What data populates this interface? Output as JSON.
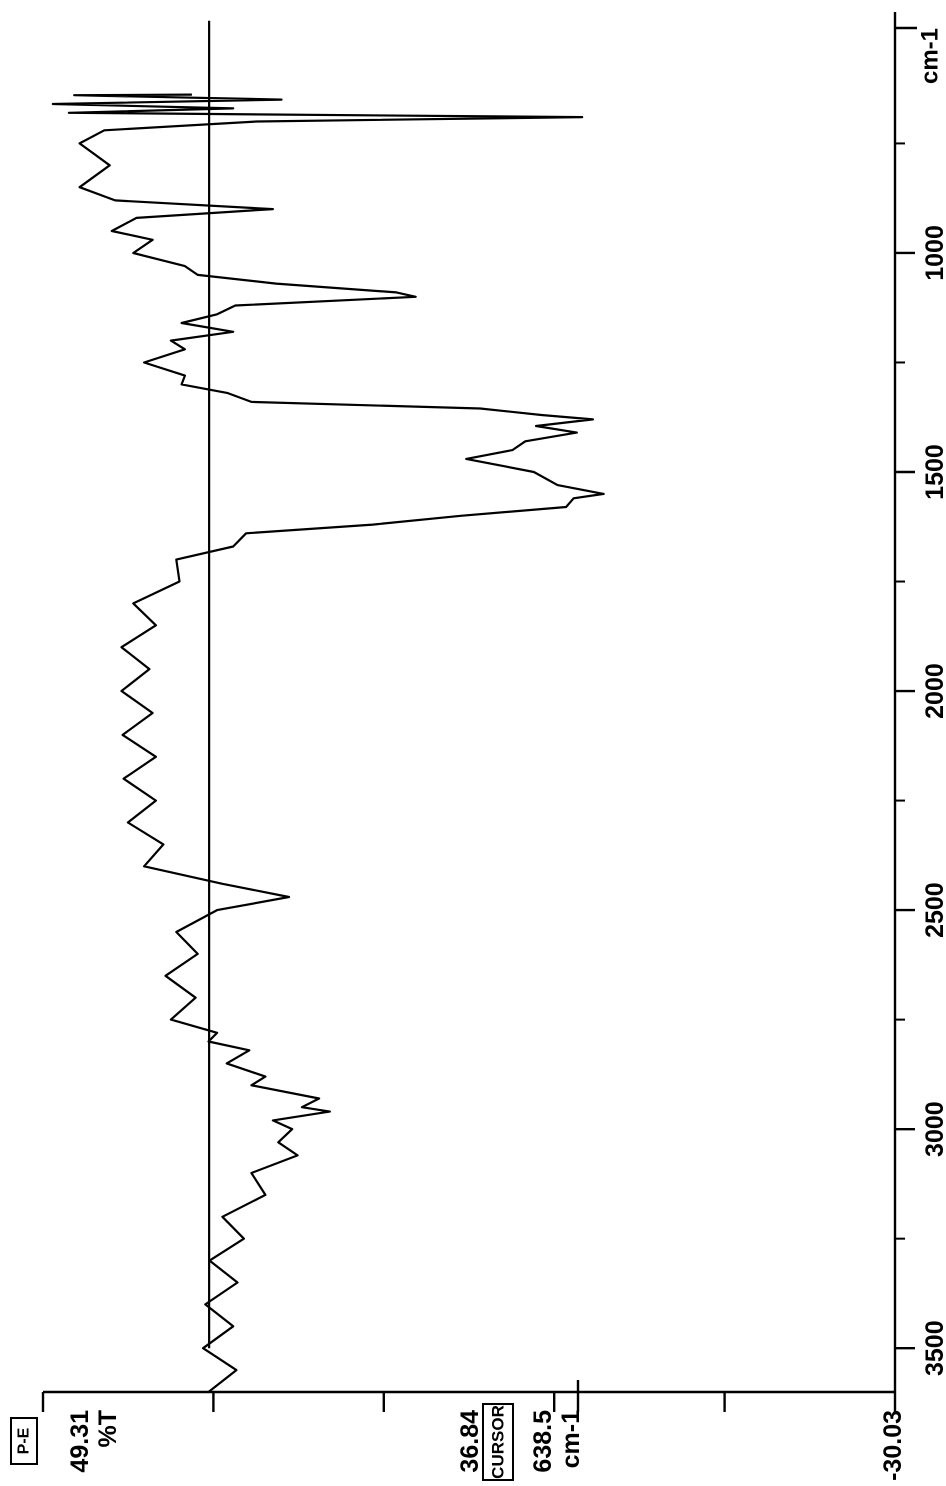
{
  "instrument_tag": "P-E",
  "y_readout": {
    "max": "49.31",
    "unit": "%T",
    "cursor_value": "36.84",
    "cursor_label": "CURSOR",
    "cursor_x": "638.5",
    "cursor_x_unit": "cm-1",
    "min": "-30.03"
  },
  "chart_data": {
    "type": "line",
    "orientation": "rotated-90",
    "xlabel": "cm-1",
    "ylabel": "%T",
    "xlim": [
      3600,
      450
    ],
    "ylim": [
      -30.03,
      49.31
    ],
    "x_ticks": [
      "3500",
      "3000",
      "2500",
      "2000",
      "1500",
      "1000"
    ],
    "grid": false,
    "series": [
      {
        "x": [
          3600,
          3550,
          3500,
          3450,
          3400,
          3350,
          3300,
          3250,
          3200,
          3150,
          3100,
          3060,
          3030,
          3000,
          2980,
          2960,
          2950,
          2930,
          2900,
          2880,
          2850,
          2820,
          2800,
          2780,
          2750,
          2700,
          2650,
          2600,
          2550,
          2500,
          2470,
          2440,
          2400,
          2350,
          2300,
          2250,
          2200,
          2150,
          2100,
          2050,
          2000,
          1950,
          1900,
          1850,
          1800,
          1750,
          1700,
          1670,
          1640,
          1620,
          1600,
          1580,
          1560,
          1550,
          1530,
          1500,
          1470,
          1450,
          1430,
          1410,
          1395,
          1380,
          1370,
          1355,
          1340,
          1320,
          1300,
          1280,
          1250,
          1220,
          1200,
          1180,
          1160,
          1140,
          1120,
          1100,
          1090,
          1070,
          1050,
          1030,
          1000,
          970,
          950,
          920,
          900,
          880,
          850,
          800,
          750,
          720,
          700,
          690,
          680,
          670,
          660,
          650,
          640,
          638.5
        ],
        "values": [
          32.5,
          32.7,
          33.0,
          33.0,
          32.8,
          32.6,
          32.4,
          32.0,
          31.2,
          30.0,
          28.5,
          27.0,
          26.0,
          27.5,
          26.5,
          24.0,
          23.8,
          25.0,
          28.5,
          30.0,
          30.8,
          31.5,
          32.5,
          34.5,
          36.0,
          36.5,
          36.5,
          36.3,
          35.5,
          34.5,
          25.0,
          34.0,
          38.5,
          39.5,
          40.0,
          40.2,
          40.4,
          40.2,
          40.5,
          40.5,
          40.6,
          40.8,
          40.6,
          40.2,
          39.5,
          38.0,
          35.5,
          33.0,
          29.0,
          20.0,
          9.0,
          2.0,
          -1.5,
          -1.5,
          0.0,
          5.0,
          8.5,
          7.0,
          3.0,
          1.0,
          2.0,
          -0.5,
          1.5,
          10.0,
          28.5,
          33.5,
          35.0,
          37.5,
          38.5,
          37.5,
          36.0,
          33.0,
          35.0,
          34.5,
          30.0,
          16.0,
          15.0,
          29.0,
          33.5,
          37.5,
          39.5,
          40.5,
          41.5,
          42.0,
          26.5,
          44.0,
          44.5,
          44.5,
          44.5,
          45.0,
          28.0,
          0.5,
          45.5,
          33.0,
          47.0,
          28.5,
          45.0,
          36.84
        ]
      }
    ]
  }
}
